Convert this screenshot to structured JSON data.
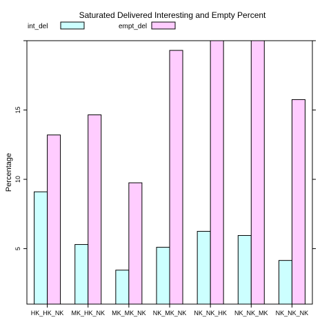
{
  "chart_data": {
    "type": "bar",
    "title": "Saturated Delivered Interesting and Empty Percent",
    "xlabel": "",
    "ylabel": "Percentage",
    "ylim": [
      1.0,
      20.0
    ],
    "yticks": [
      5,
      10,
      15
    ],
    "categories": [
      "HK_HK_NK",
      "MK_HK_NK",
      "MK_MK_NK",
      "NK_MK_NK",
      "NK_NK_HK",
      "NK_NK_MK",
      "NK_NK_NK"
    ],
    "series": [
      {
        "name": "int_del",
        "color": "#ccffff",
        "values": [
          9.1,
          5.3,
          3.45,
          5.1,
          6.25,
          5.95,
          4.15
        ]
      },
      {
        "name": "empt_del",
        "color": "#ffccff",
        "values": [
          13.2,
          14.65,
          9.75,
          19.3,
          20.0,
          20.0,
          15.75
        ]
      }
    ],
    "legend": "top",
    "grid": false
  }
}
